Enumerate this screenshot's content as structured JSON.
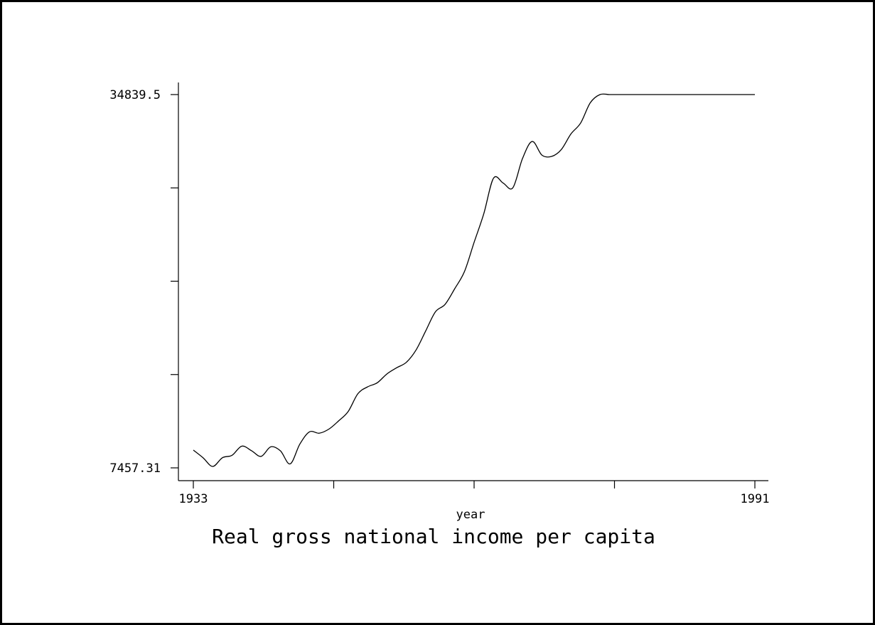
{
  "chart_data": {
    "type": "line",
    "title": "Real gross national income per capita",
    "xlabel": "year",
    "ylabel": "",
    "xlim": [
      1933,
      1991
    ],
    "ylim": [
      7457.31,
      34839.5
    ],
    "x_tick_values": [
      1933,
      1947.5,
      1962,
      1976.5,
      1991
    ],
    "x_tick_labels": [
      "1933",
      "",
      "",
      "",
      "1991"
    ],
    "y_tick_values": [
      7457.31,
      14302.86,
      21148.41,
      27993.95,
      34839.5
    ],
    "y_tick_labels": [
      "7457.31",
      "",
      "",
      "",
      "34839.5"
    ],
    "grid": false,
    "series": [
      {
        "color": "#000000",
        "x": [
          1933,
          1934,
          1935,
          1936,
          1937,
          1938,
          1939,
          1940,
          1941,
          1942,
          1943,
          1944,
          1945,
          1946,
          1947,
          1948,
          1949,
          1950,
          1951,
          1952,
          1953,
          1954,
          1955,
          1956,
          1957,
          1958,
          1959,
          1960,
          1961,
          1962,
          1963,
          1964,
          1965,
          1966,
          1967,
          1968,
          1969,
          1970,
          1971,
          1972,
          1973,
          1974,
          1975,
          1976,
          1977,
          1978,
          1979,
          1980,
          1981,
          1982,
          1983,
          1984,
          1985,
          1986,
          1987,
          1988,
          1989,
          1990,
          1991
        ],
        "values": [
          8760,
          8200,
          7560,
          8200,
          8380,
          9050,
          8720,
          8300,
          9000,
          8700,
          7750,
          9200,
          10100,
          10000,
          10300,
          10900,
          11600,
          12900,
          13400,
          13700,
          14350,
          14800,
          15200,
          16100,
          17500,
          18900,
          19450,
          20600,
          21850,
          24000,
          26100,
          28700,
          28350,
          28000,
          30150,
          31400,
          30400,
          30300,
          30800,
          31950,
          32750,
          34239,
          34839.5,
          34839.5,
          34839.5,
          34839.5,
          34839.5,
          34839.5,
          34839.5,
          34839.5,
          34839.5,
          34839.5,
          34839.5,
          34839.5,
          34839.5,
          34839.5,
          34839.5,
          34839.5,
          34839.5
        ]
      }
    ]
  }
}
